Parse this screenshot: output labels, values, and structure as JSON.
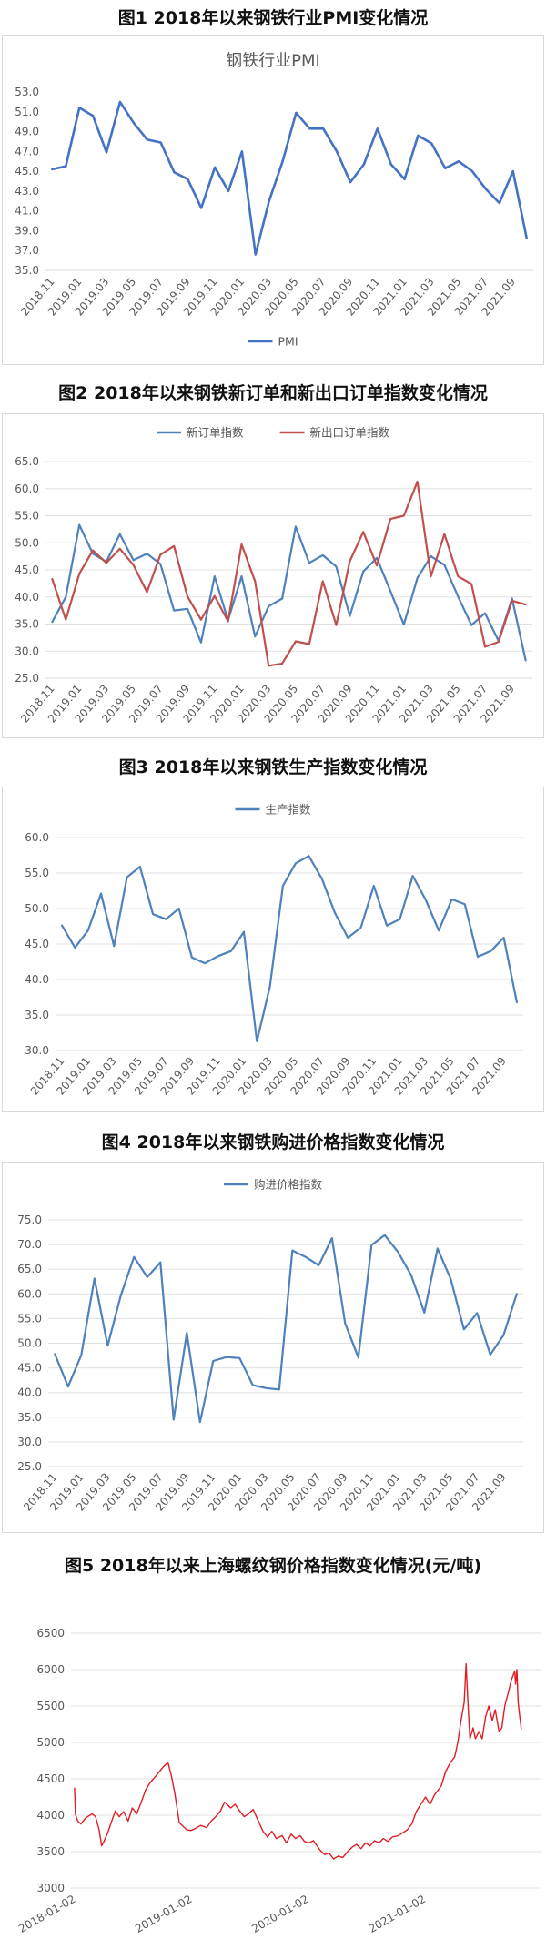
{
  "figures": [
    {
      "caption": "图1 2018年以来钢铁行业PMI变化情况"
    },
    {
      "caption": "图2 2018年以来钢铁新订单和新出口订单指数变化情况"
    },
    {
      "caption": "图3 2018年以来钢铁生产指数变化情况"
    },
    {
      "caption": "图4 2018年以来钢铁购进价格指数变化情况"
    },
    {
      "caption": "图5 2018年以来上海螺纹钢价格指数变化情况(元/吨)"
    }
  ],
  "chart_data": [
    {
      "type": "line",
      "title": "钢铁行业PMI",
      "x_tick_labels": [
        "2018.11",
        "2019.01",
        "2019.03",
        "2019.05",
        "2019.07",
        "2019.09",
        "2019.11",
        "2020.01",
        "2020.03",
        "2020.05",
        "2020.07",
        "2020.09",
        "2020.11",
        "2021.01",
        "2021.03",
        "2021.05",
        "2021.07",
        "2021.09"
      ],
      "series": [
        {
          "name": "PMI",
          "color": "#4472C4",
          "values": [
            45.2,
            45.5,
            51.4,
            50.6,
            46.9,
            52.0,
            49.9,
            48.2,
            47.9,
            44.9,
            44.2,
            41.3,
            45.4,
            43.0,
            47.0,
            36.6,
            42.0,
            46.0,
            50.9,
            49.3,
            49.3,
            47.0,
            43.9,
            45.7,
            49.3,
            45.7,
            44.2,
            48.6,
            47.8,
            45.3,
            46.0,
            45.0,
            43.2,
            41.8,
            45.0,
            38.3
          ]
        }
      ],
      "ylim": [
        35,
        53
      ],
      "ytick_step": 2,
      "ytick_decimals": 1,
      "legend": "bottom",
      "grid": false
    },
    {
      "type": "line",
      "x_tick_labels": [
        "2018.11",
        "2019.01",
        "2019.03",
        "2019.05",
        "2019.07",
        "2019.09",
        "2019.11",
        "2020.01",
        "2020.03",
        "2020.05",
        "2020.07",
        "2020.09",
        "2020.11",
        "2021.01",
        "2021.03",
        "2021.05",
        "2021.07",
        "2021.09"
      ],
      "series": [
        {
          "name": "新订单指数",
          "color": "#4F81BD",
          "values": [
            35.4,
            40.0,
            53.3,
            48.0,
            46.5,
            51.6,
            46.8,
            48.0,
            46.1,
            37.5,
            37.8,
            31.6,
            43.8,
            35.7,
            43.8,
            32.7,
            38.3,
            39.7,
            53.0,
            46.3,
            47.7,
            45.6,
            36.5,
            44.7,
            47.2,
            41.1,
            34.9,
            43.5,
            47.5,
            45.9,
            40.1,
            34.8,
            37.0,
            31.9,
            39.7,
            28.3
          ]
        },
        {
          "name": "新出口订单指数",
          "color": "#C0504D",
          "values": [
            43.3,
            35.8,
            44.3,
            48.6,
            46.3,
            48.9,
            45.9,
            40.9,
            47.8,
            49.4,
            40.1,
            35.8,
            40.2,
            35.5,
            49.7,
            42.9,
            27.3,
            27.7,
            31.8,
            31.3,
            42.9,
            34.8,
            46.6,
            52.0,
            45.8,
            54.4,
            55.0,
            61.3,
            43.8,
            51.6,
            43.8,
            42.4,
            30.8,
            31.7,
            39.3,
            38.6
          ]
        }
      ],
      "ylim": [
        25,
        65
      ],
      "ytick_step": 5,
      "ytick_decimals": 1,
      "legend": "top",
      "grid": true
    },
    {
      "type": "line",
      "x_tick_labels": [
        "2018.11",
        "2019.01",
        "2019.03",
        "2019.05",
        "2019.07",
        "2019.09",
        "2019.11",
        "2020.01",
        "2020.03",
        "2020.05",
        "2020.07",
        "2020.09",
        "2020.11",
        "2021.01",
        "2021.03",
        "2021.05",
        "2021.07",
        "2021.09"
      ],
      "series": [
        {
          "name": "生产指数",
          "color": "#4F81BD",
          "values": [
            47.6,
            44.5,
            46.9,
            52.1,
            44.7,
            54.4,
            55.9,
            49.2,
            48.5,
            50.0,
            43.1,
            42.3,
            43.3,
            44.0,
            46.7,
            31.3,
            39.0,
            53.2,
            56.4,
            57.4,
            54.2,
            49.4,
            45.9,
            47.3,
            53.2,
            47.6,
            48.5,
            54.6,
            51.2,
            46.9,
            51.3,
            50.6,
            43.2,
            44.0,
            45.9,
            36.8
          ]
        }
      ],
      "ylim": [
        30,
        60
      ],
      "ytick_step": 5,
      "ytick_decimals": 1,
      "legend": "top",
      "grid": true
    },
    {
      "type": "line",
      "x_tick_labels": [
        "2018.11",
        "2019.01",
        "2019.03",
        "2019.05",
        "2019.07",
        "2019.09",
        "2019.11",
        "2020.01",
        "2020.03",
        "2020.05",
        "2020.07",
        "2020.09",
        "2020.11",
        "2021.01",
        "2021.03",
        "2021.05",
        "2021.07",
        "2021.09"
      ],
      "series": [
        {
          "name": "购进价格指数",
          "color": "#4F81BD",
          "values": [
            47.8,
            41.2,
            47.6,
            63.1,
            49.5,
            59.7,
            67.5,
            63.4,
            66.4,
            34.5,
            52.1,
            34.0,
            46.4,
            47.2,
            47.0,
            41.5,
            40.9,
            40.6,
            68.8,
            67.5,
            65.8,
            71.3,
            54.0,
            47.1,
            69.9,
            71.9,
            68.5,
            63.8,
            56.2,
            69.2,
            63.0,
            52.8,
            56.1,
            47.7,
            51.6,
            60.0
          ]
        }
      ],
      "ylim": [
        25,
        75
      ],
      "ytick_step": 5,
      "ytick_decimals": 1,
      "legend": "top",
      "grid": true
    },
    {
      "type": "line",
      "x_tick_labels": [
        "2018-01-02",
        "2019-01-02",
        "2020-01-02",
        "2021-01-02"
      ],
      "xlim": [
        "2017-12-22",
        "2021-12-31"
      ],
      "ylim": [
        3000,
        6500
      ],
      "ytick_step": 500,
      "ytick_decimals": 0,
      "legend": "none",
      "grid": true,
      "series": [
        {
          "color": "#E31B23",
          "x": [
            "2018-01-02",
            "2018-01-05",
            "2018-01-12",
            "2018-01-22",
            "2018-02-05",
            "2018-02-26",
            "2018-03-09",
            "2018-03-20",
            "2018-03-28",
            "2018-04-04",
            "2018-04-16",
            "2018-04-27",
            "2018-05-10",
            "2018-05-22",
            "2018-06-05",
            "2018-06-19",
            "2018-07-02",
            "2018-07-16",
            "2018-07-30",
            "2018-08-13",
            "2018-08-27",
            "2018-09-10",
            "2018-09-25",
            "2018-10-10",
            "2018-10-22",
            "2018-11-01",
            "2018-11-12",
            "2018-11-26",
            "2018-12-07",
            "2018-12-20",
            "2019-01-02",
            "2019-01-16",
            "2019-02-01",
            "2019-02-20",
            "2019-03-06",
            "2019-03-20",
            "2019-04-03",
            "2019-04-17",
            "2019-05-06",
            "2019-05-20",
            "2019-06-03",
            "2019-06-17",
            "2019-07-01",
            "2019-07-15",
            "2019-08-01",
            "2019-08-15",
            "2019-08-29",
            "2019-09-12",
            "2019-09-26",
            "2019-10-14",
            "2019-10-28",
            "2019-11-11",
            "2019-11-25",
            "2019-12-09",
            "2019-12-23",
            "2020-01-06",
            "2020-01-20",
            "2020-02-10",
            "2020-02-24",
            "2020-03-09",
            "2020-03-23",
            "2020-04-07",
            "2020-04-21",
            "2020-05-06",
            "2020-05-20",
            "2020-06-03",
            "2020-06-17",
            "2020-07-01",
            "2020-07-15",
            "2020-07-29",
            "2020-08-12",
            "2020-08-26",
            "2020-09-09",
            "2020-09-23",
            "2020-10-12",
            "2020-10-26",
            "2020-11-09",
            "2020-11-23",
            "2020-12-07",
            "2020-12-21",
            "2021-01-05",
            "2021-01-19",
            "2021-02-02",
            "2021-02-23",
            "2021-03-09",
            "2021-03-23",
            "2021-04-06",
            "2021-04-16",
            "2021-04-26",
            "2021-05-06",
            "2021-05-12",
            "2021-05-17",
            "2021-05-24",
            "2021-06-03",
            "2021-06-10",
            "2021-06-21",
            "2021-07-01",
            "2021-07-12",
            "2021-07-22",
            "2021-08-02",
            "2021-08-11",
            "2021-08-23",
            "2021-09-01",
            "2021-09-10",
            "2021-09-22",
            "2021-09-30",
            "2021-10-11",
            "2021-10-14",
            "2021-10-18",
            "2021-10-22",
            "2021-10-27",
            "2021-11-01"
          ],
          "values": [
            4380,
            4010,
            3920,
            3880,
            3960,
            4020,
            3980,
            3800,
            3580,
            3640,
            3760,
            3900,
            4060,
            3980,
            4050,
            3920,
            4100,
            4020,
            4180,
            4350,
            4450,
            4520,
            4600,
            4680,
            4720,
            4550,
            4300,
            3900,
            3850,
            3800,
            3790,
            3820,
            3860,
            3830,
            3920,
            3980,
            4050,
            4180,
            4100,
            4150,
            4060,
            3980,
            4020,
            4080,
            3920,
            3780,
            3700,
            3780,
            3680,
            3720,
            3620,
            3740,
            3680,
            3720,
            3640,
            3620,
            3650,
            3520,
            3460,
            3480,
            3400,
            3440,
            3420,
            3500,
            3560,
            3600,
            3540,
            3620,
            3580,
            3650,
            3620,
            3680,
            3640,
            3700,
            3720,
            3760,
            3800,
            3880,
            4050,
            4150,
            4250,
            4150,
            4280,
            4400,
            4600,
            4720,
            4800,
            5000,
            5300,
            5550,
            6080,
            5600,
            5050,
            5200,
            5050,
            5150,
            5050,
            5350,
            5500,
            5300,
            5450,
            5150,
            5200,
            5500,
            5700,
            5850,
            5980,
            5800,
            6000,
            5550,
            5350,
            5180
          ]
        }
      ]
    }
  ]
}
